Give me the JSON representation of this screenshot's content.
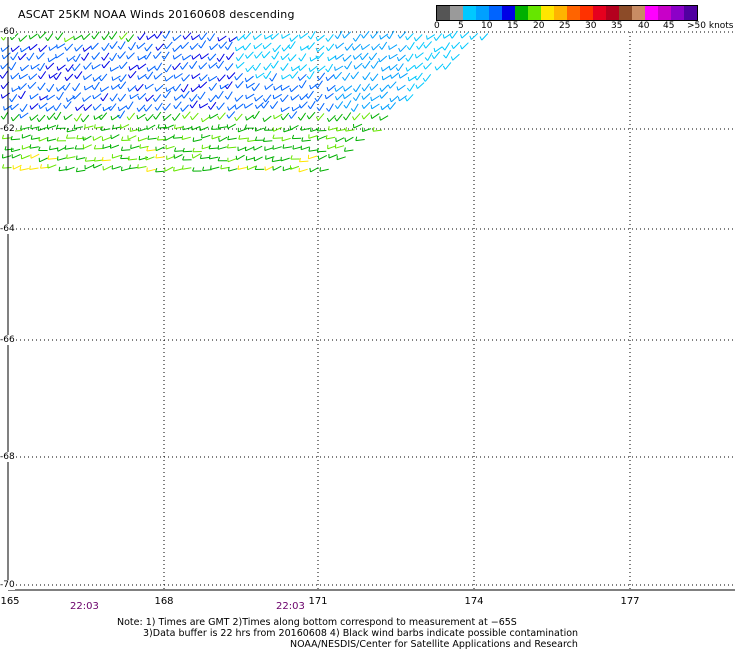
{
  "title": "ASCAT 25KM NOAA Winds 20160608 descending",
  "legend": {
    "colors": [
      "#555555",
      "#9a9a9a",
      "#00c8ff",
      "#00a0ff",
      "#0064ff",
      "#0000e6",
      "#00b000",
      "#66e600",
      "#ffe600",
      "#ffb400",
      "#ff6400",
      "#ff3200",
      "#e6001e",
      "#b4001e",
      "#8c4b28",
      "#c88c64",
      "#ff00ff",
      "#c800c8",
      "#8c00c8",
      "#5000a0"
    ],
    "labels": [
      "0",
      "5",
      "10",
      "15",
      "20",
      "25",
      "30",
      "35",
      "40",
      "45",
      ">50 knots"
    ]
  },
  "axes": {
    "longitudes": [
      "165",
      "168",
      "171",
      "174",
      "177"
    ],
    "latitudes": [
      "-60",
      "-62",
      "-64",
      "-66",
      "-68",
      "-70"
    ]
  },
  "times": [
    "22:03",
    "22:03"
  ],
  "notes": [
    "Note: 1) Times are GMT 2)Times along bottom correspond to measurement at −65S",
    "3)Data buffer is 22 hrs from 20160608 4) Black wind barbs indicate possible contamination",
    "NOAA/NESDIS/Center for Satellite Applications and Research"
  ]
}
